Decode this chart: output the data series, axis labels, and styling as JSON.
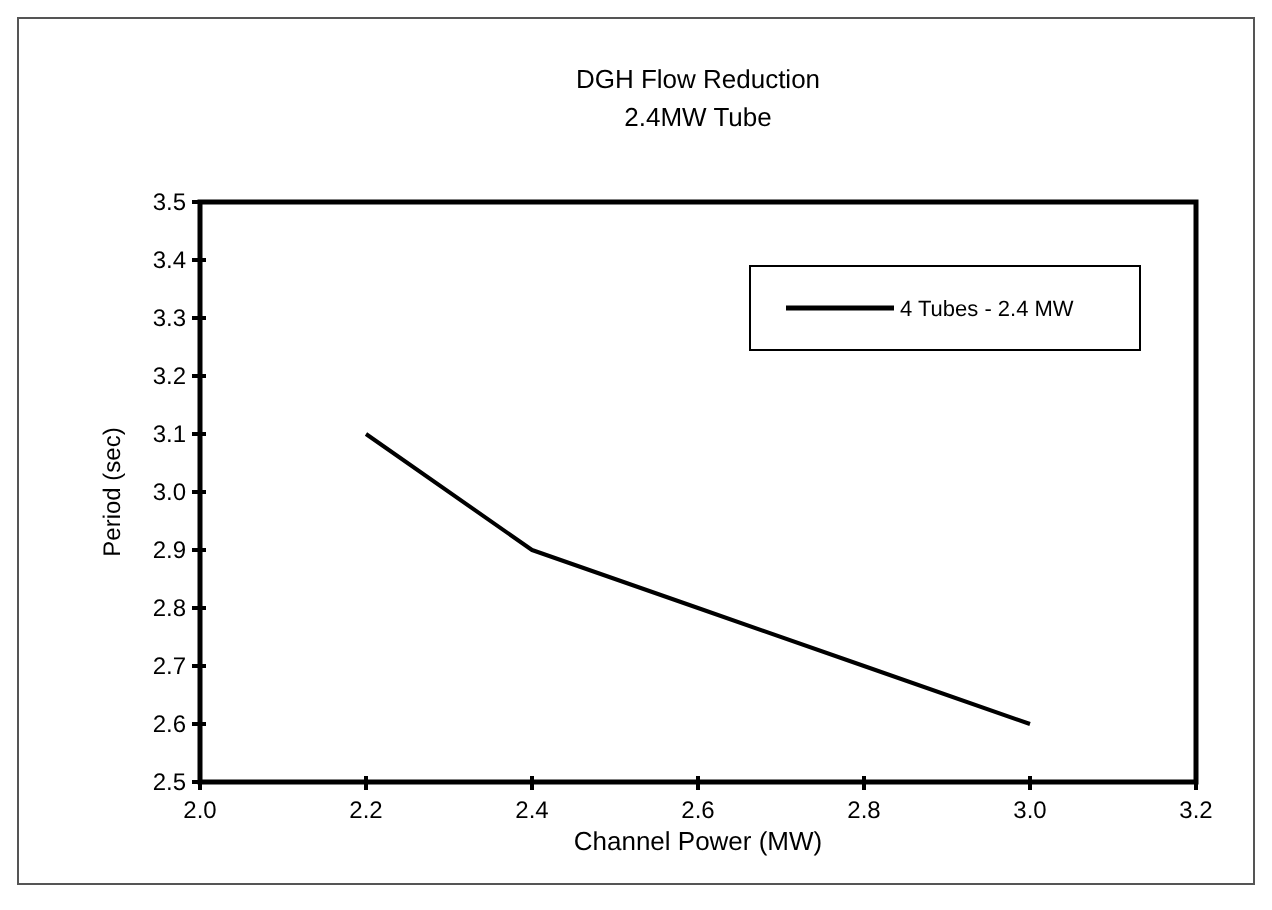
{
  "chart_data": {
    "type": "line",
    "title": "DGH Flow Reduction",
    "subtitle": "2.4MW Tube",
    "xlabel": "Channel Power (MW)",
    "ylabel": "Period (sec)",
    "x": [
      2.2,
      2.4,
      2.6,
      2.8,
      3.0
    ],
    "series": [
      {
        "name": "4 Tubes - 2.4 MW",
        "color": "#000000",
        "values": [
          3.1,
          2.9,
          2.8,
          2.7,
          2.6
        ]
      }
    ],
    "xlim": [
      2.0,
      3.2
    ],
    "xticks": [
      {
        "value": 2.0,
        "label": "2.0"
      },
      {
        "value": 2.2,
        "label": "2.2"
      },
      {
        "value": 2.4,
        "label": "2.4"
      },
      {
        "value": 2.6,
        "label": "2.6"
      },
      {
        "value": 2.8,
        "label": "2.8"
      },
      {
        "value": 3.0,
        "label": "3.0"
      },
      {
        "value": 3.2,
        "label": "3.2"
      }
    ],
    "ylim": [
      2.5,
      3.5
    ],
    "yticks": [
      {
        "value": 2.5,
        "label": "2.5"
      },
      {
        "value": 2.6,
        "label": "2.6"
      },
      {
        "value": 2.7,
        "label": "2.7"
      },
      {
        "value": 2.8,
        "label": "2.8"
      },
      {
        "value": 2.9,
        "label": "2.9"
      },
      {
        "value": 3.0,
        "label": "3.0"
      },
      {
        "value": 3.1,
        "label": "3.1"
      },
      {
        "value": 3.2,
        "label": "3.2"
      },
      {
        "value": 3.3,
        "label": "3.3"
      },
      {
        "value": 3.4,
        "label": "3.4"
      },
      {
        "value": 3.5,
        "label": "3.5"
      }
    ],
    "legend": "top right",
    "marker": "none",
    "line_style": "solid",
    "grid": false
  }
}
